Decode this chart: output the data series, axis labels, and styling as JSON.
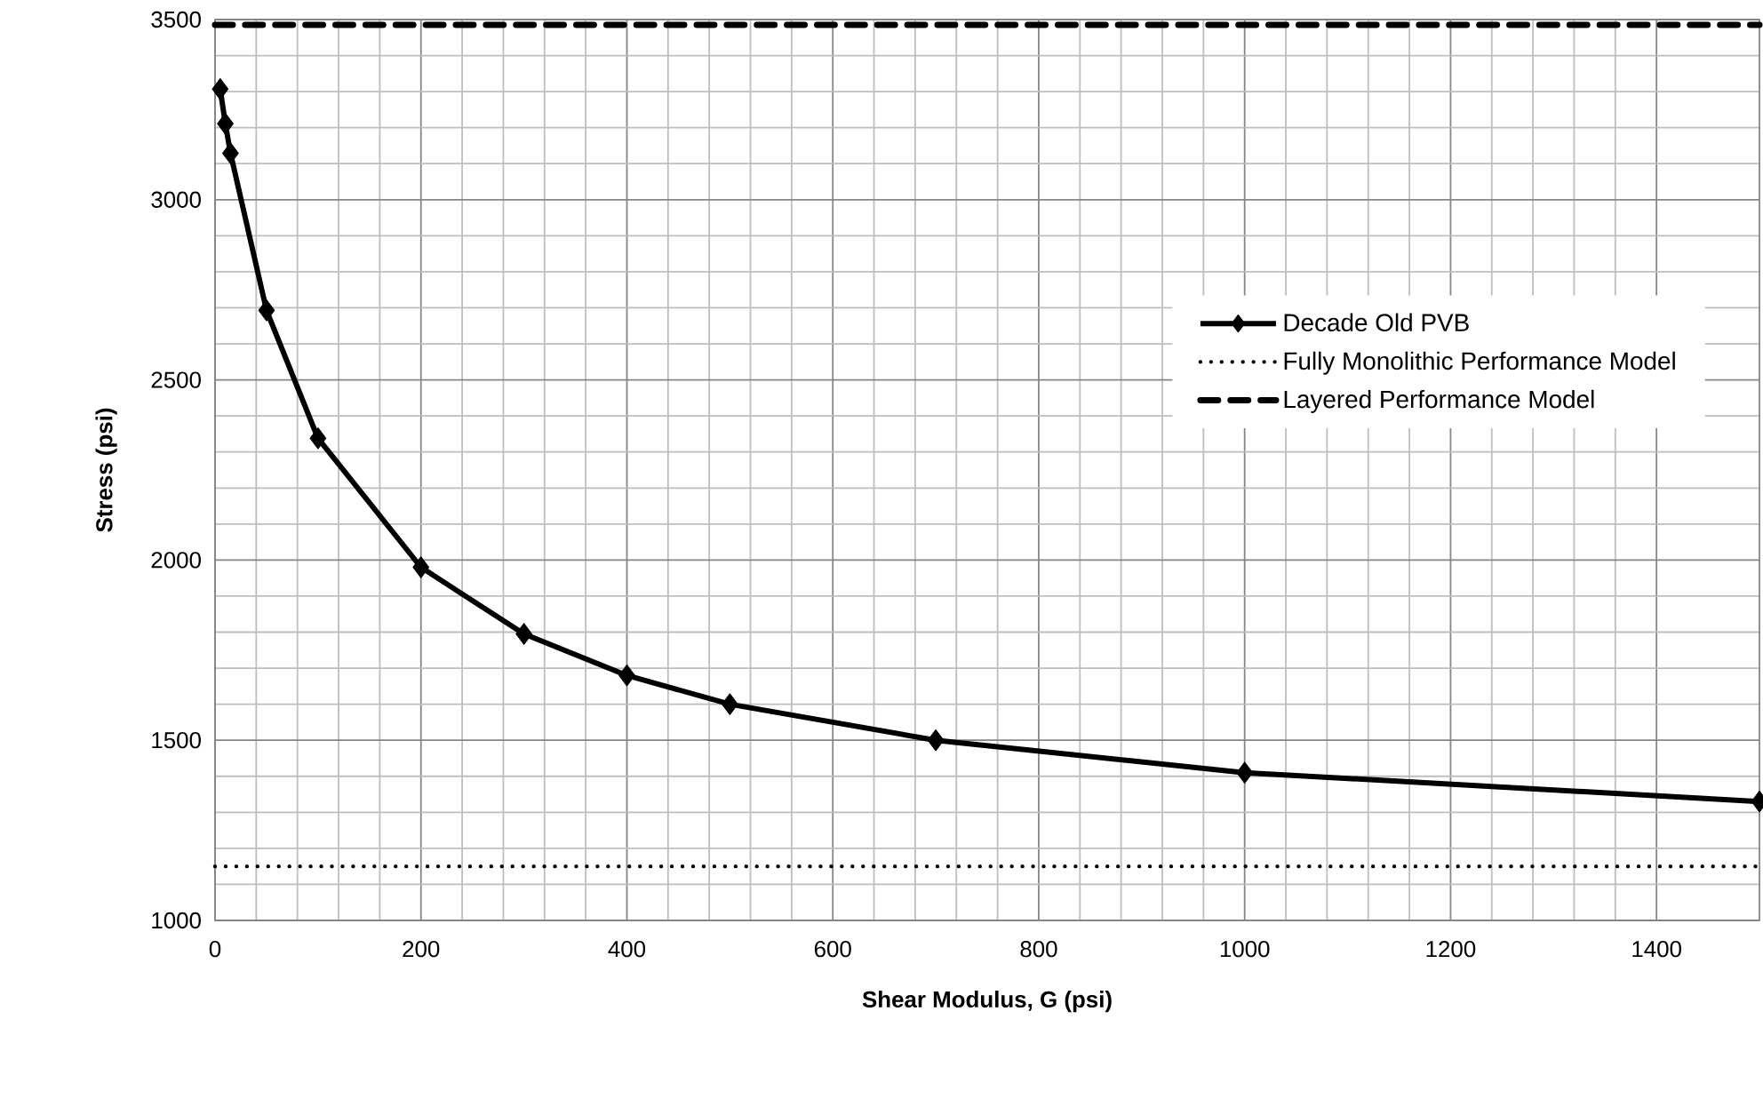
{
  "chart_data": {
    "type": "line",
    "xlabel": "Shear Modulus, G (psi)",
    "ylabel": "Stress (psi)",
    "xlim": [
      0,
      1500
    ],
    "ylim": [
      1000,
      3500
    ],
    "xticks": [
      0,
      200,
      400,
      600,
      800,
      1000,
      1200,
      1400
    ],
    "yticks": [
      1000,
      1500,
      2000,
      2500,
      3000,
      3500
    ],
    "grid": true,
    "legend": "right",
    "series": [
      {
        "name": "Decade Old PVB",
        "color": "#000000",
        "marker": "diamond",
        "line_style": "solid",
        "x": [
          5,
          10,
          15,
          50,
          100,
          200,
          300,
          400,
          500,
          700,
          1000,
          1500
        ],
        "values": [
          3307,
          3211,
          3129,
          2693,
          2338,
          1980,
          1795,
          1680,
          1600,
          1500,
          1410,
          1330
        ]
      },
      {
        "name": "Fully Monolithic Performance Model",
        "color": "#000000",
        "marker": "none",
        "line_style": "dotted",
        "x": [
          0,
          1500
        ],
        "values": [
          1150,
          1150
        ]
      },
      {
        "name": "Layered Performance Model",
        "color": "#000000",
        "marker": "none",
        "line_style": "dashed",
        "x": [
          0,
          1500
        ],
        "values": [
          3485,
          3485
        ]
      }
    ]
  }
}
